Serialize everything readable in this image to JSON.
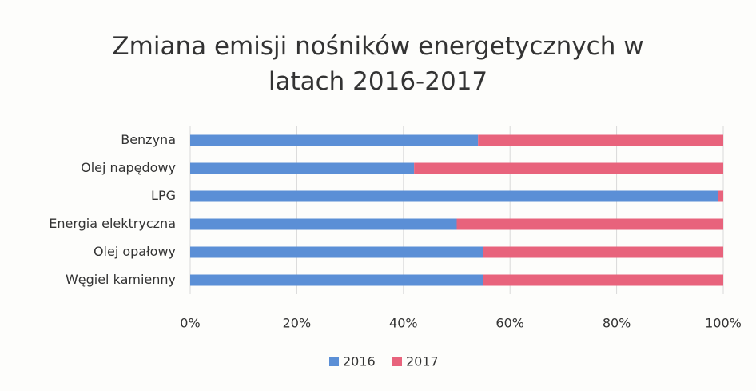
{
  "chart_data": {
    "type": "stacked_bar_horizontal_percent",
    "title": "Zmiana emisji nośników energetycznych w latach 2016-2017",
    "categories": [
      "Benzyna",
      "Olej napędowy",
      "LPG",
      "Energia elektryczna",
      "Olej opałowy",
      "Węgiel kamienny"
    ],
    "series": [
      {
        "name": "2016",
        "color": "#5b8fd6",
        "values": [
          54,
          42,
          99,
          50,
          55,
          55
        ]
      },
      {
        "name": "2017",
        "color": "#e8637c",
        "values": [
          46,
          58,
          1,
          50,
          45,
          45
        ]
      }
    ],
    "xlim": [
      0,
      100
    ],
    "xticks": [
      {
        "value": 0,
        "label": "0%"
      },
      {
        "value": 20,
        "label": "20%"
      },
      {
        "value": 40,
        "label": "40%"
      },
      {
        "value": 60,
        "label": "60%"
      },
      {
        "value": 80,
        "label": "80%"
      },
      {
        "value": 100,
        "label": "100%"
      }
    ],
    "grid": true,
    "legend": "bottom"
  }
}
